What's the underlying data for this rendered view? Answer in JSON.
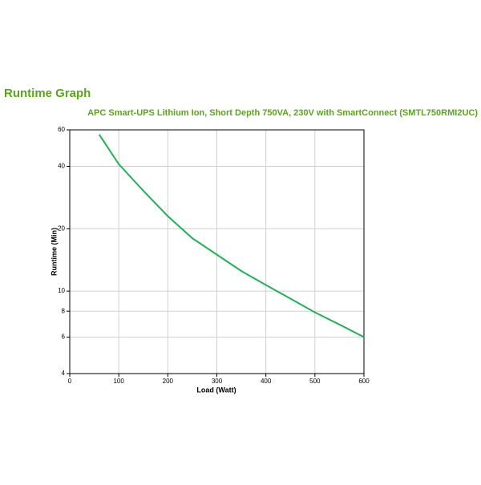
{
  "chart_data": {
    "type": "line",
    "title": "Runtime Graph",
    "subtitle": "APC Smart-UPS Lithium Ion, Short Depth 750VA, 230V with SmartConnect (SMTL750RMI2UC)",
    "x_label": "Load (Watt)",
    "y_label": "Runtime (Min)",
    "x": [
      60,
      100,
      150,
      200,
      250,
      300,
      350,
      400,
      450,
      500,
      550,
      600
    ],
    "series": [
      {
        "name": "Runtime",
        "color": "#22b05a",
        "values": [
          57,
          41,
          30.5,
          23,
          18,
          15,
          12.5,
          10.7,
          9.2,
          7.9,
          6.9,
          6.0
        ]
      }
    ],
    "xlim": [
      0,
      600
    ],
    "xticks": [
      0,
      100,
      200,
      300,
      400,
      500,
      600
    ],
    "ylim": [
      4,
      60
    ],
    "yticks": [
      4,
      6,
      8,
      10,
      20,
      40,
      60
    ],
    "y_scale": "log",
    "grid": true,
    "title_color": "#5aa51e"
  }
}
